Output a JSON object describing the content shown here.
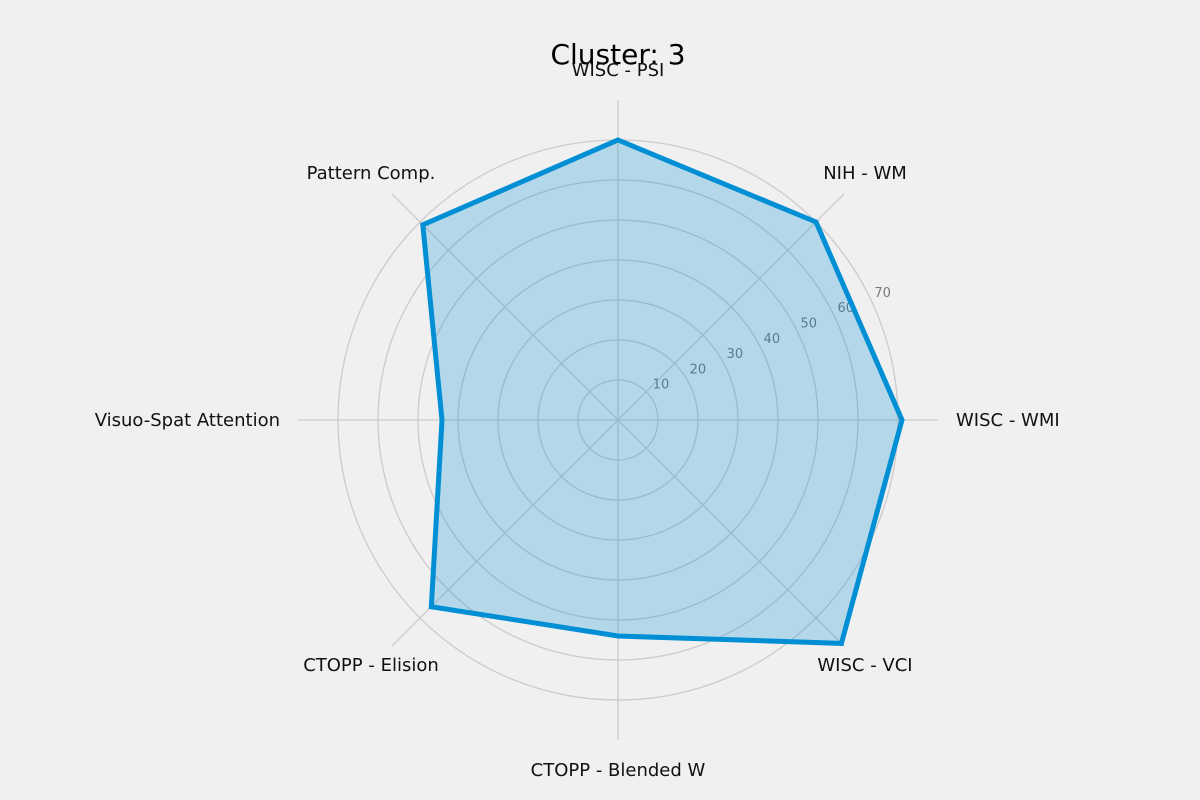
{
  "chart_data": {
    "type": "radar",
    "title": "Cluster: 3",
    "axes": [
      "WISC - PSI",
      "NIH - WM",
      "WISC - WMI",
      "WISC - VCI",
      "CTOPP - Blended W",
      "CTOPP - Elision",
      "Visuo-Spat Attention",
      "Pattern Comp."
    ],
    "series": [
      {
        "values": [
          70,
          70,
          71,
          79,
          54,
          66,
          44,
          69
        ]
      }
    ],
    "r_ticks": [
      10,
      20,
      30,
      40,
      50,
      60,
      70
    ],
    "rlim": [
      0,
      80
    ],
    "grid": true,
    "colors": {
      "line": "#008fd5",
      "fill": "#008fd5",
      "grid": "#cbcbcb",
      "background": "#f0f0f0"
    }
  }
}
